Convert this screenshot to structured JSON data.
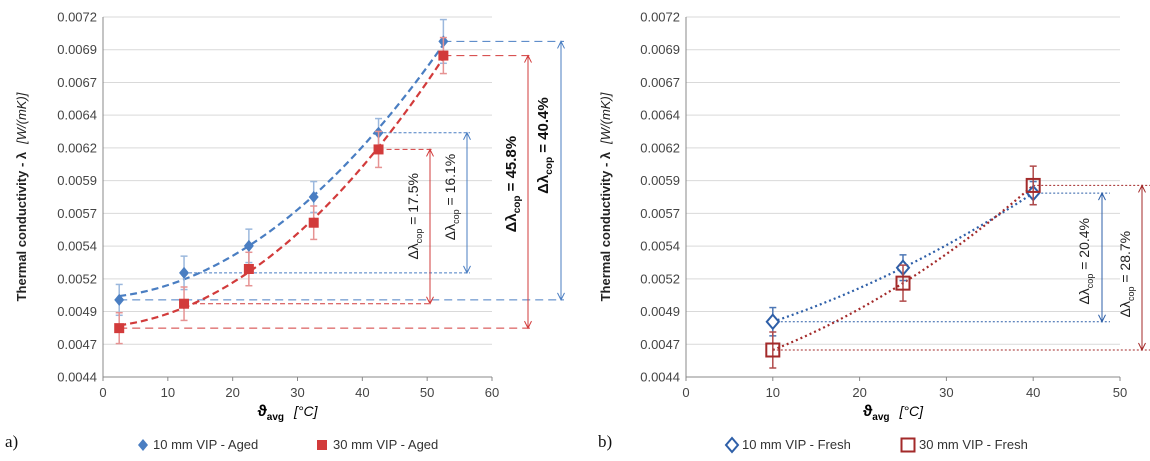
{
  "chart_data": [
    {
      "panel_label": "a)",
      "type": "scatter",
      "ylabel_main": "Thermal conductivity - λ",
      "ylabel_unit": "[W/(mK)]",
      "xlabel_symbol": "ϑ",
      "xlabel_sub": "avg",
      "xlabel_unit": "[°C]",
      "xlim": [
        0,
        60
      ],
      "ylim": [
        0.0044,
        0.0072
      ],
      "xticks": [
        "0",
        "10",
        "20",
        "30",
        "40",
        "50",
        "60"
      ],
      "yticks": [
        "0.0044",
        "0.0047",
        "0.0049",
        "0.0052",
        "0.0054",
        "0.0057",
        "0.0059",
        "0.0062",
        "0.0064",
        "0.0067",
        "0.0069",
        "0.0072"
      ],
      "grid": "horizontal",
      "legend_position": "bottom",
      "series": [
        {
          "name": "10 mm VIP - Aged",
          "color": "#4a7ec2",
          "marker": "diamond-filled",
          "trend": "dashed",
          "x": [
            2.5,
            12.5,
            22.5,
            32.5,
            42.5,
            52.5
          ],
          "y": [
            0.005,
            0.00521,
            0.00542,
            0.0058,
            0.0063,
            0.00701
          ],
          "err": [
            0.00012,
            0.00013,
            0.00013,
            0.00012,
            0.00011,
            0.00017
          ]
        },
        {
          "name": "30 mm VIP - Aged",
          "color": "#d23b3b",
          "marker": "square-filled",
          "trend": "dashed",
          "x": [
            2.5,
            12.5,
            22.5,
            32.5,
            42.5,
            52.5
          ],
          "y": [
            0.00478,
            0.00497,
            0.00524,
            0.0056,
            0.00617,
            0.0069
          ],
          "err": [
            0.00012,
            0.00013,
            0.00013,
            0.00013,
            0.00014,
            0.00014
          ]
        }
      ],
      "annotations": [
        {
          "sub": "cop",
          "pct": "17.5%",
          "bold": false
        },
        {
          "sub": "cop",
          "pct": "16.1%",
          "bold": false
        },
        {
          "sub": "cop",
          "pct": "45.8%",
          "bold": true
        },
        {
          "sub": "cop",
          "pct": "40.4%",
          "bold": true
        }
      ]
    },
    {
      "panel_label": "b)",
      "type": "scatter",
      "ylabel_main": "Thermal conductivity - λ",
      "ylabel_unit": "[W/(mK)]",
      "xlabel_symbol": "ϑ",
      "xlabel_sub": "avg",
      "xlabel_unit": "[°C]",
      "xlim": [
        0,
        50
      ],
      "ylim": [
        0.0044,
        0.0072
      ],
      "xticks": [
        "0",
        "10",
        "20",
        "30",
        "40",
        "50"
      ],
      "yticks": [
        "0.0044",
        "0.0047",
        "0.0049",
        "0.0052",
        "0.0054",
        "0.0057",
        "0.0059",
        "0.0062",
        "0.0064",
        "0.0067",
        "0.0069",
        "0.0072"
      ],
      "grid": "horizontal",
      "legend_position": "bottom",
      "series": [
        {
          "name": "10 mm VIP - Fresh",
          "color": "#2e5fa8",
          "marker": "diamond-open",
          "trend": "dotted",
          "x": [
            10,
            25,
            40
          ],
          "y": [
            0.00483,
            0.00525,
            0.00583
          ],
          "err": [
            0.00011,
            0.0001,
            9e-05
          ]
        },
        {
          "name": "30 mm VIP - Fresh",
          "color": "#a32a2a",
          "marker": "square-open",
          "trend": "dotted",
          "x": [
            10,
            25,
            40
          ],
          "y": [
            0.00461,
            0.00513,
            0.00589
          ],
          "err": [
            0.00014,
            0.00014,
            0.00015
          ]
        }
      ],
      "annotations": [
        {
          "sub": "cop",
          "pct": "20.4%",
          "bold": false
        },
        {
          "sub": "cop",
          "pct": "28.7%",
          "bold": false
        }
      ]
    }
  ]
}
